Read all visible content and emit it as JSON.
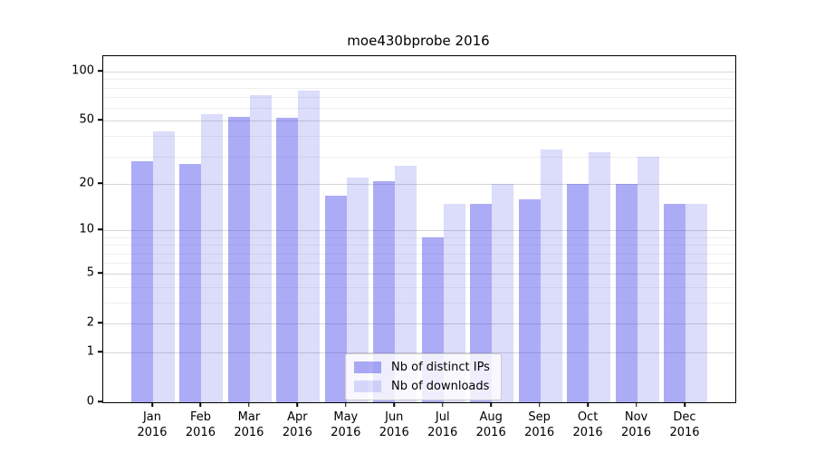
{
  "chart_data": {
    "type": "bar",
    "title": "moe430bprobe 2016",
    "year_label": "2016",
    "months": [
      "Jan",
      "Feb",
      "Mar",
      "Apr",
      "May",
      "Jun",
      "Jul",
      "Aug",
      "Sep",
      "Oct",
      "Nov",
      "Dec"
    ],
    "series": [
      {
        "name": "Nb of distinct IPs",
        "color": "rgba(70,70,235,0.45)",
        "values": [
          28,
          27,
          53,
          52,
          17,
          21,
          9,
          15,
          16,
          20,
          20,
          15
        ]
      },
      {
        "name": "Nb of downloads",
        "color": "rgba(70,70,235,0.19)",
        "values": [
          43,
          55,
          72,
          77,
          22,
          26,
          15,
          20,
          33,
          32,
          30,
          15
        ]
      }
    ],
    "y_ticks": [
      100,
      50,
      20,
      10,
      5,
      2,
      1,
      0
    ],
    "y_minor_ticks": [
      90,
      80,
      70,
      60,
      40,
      30,
      9,
      8,
      7,
      6,
      4,
      3
    ],
    "ylim": [
      0,
      124.5
    ],
    "scale": "log10(1+y)",
    "xlabel": "",
    "ylabel": "",
    "grid": {
      "enabled": true,
      "major_color": "#d6d6d6",
      "minor_color": "#efefef"
    },
    "axis_color": "#000000",
    "legend": {
      "position": "lower center",
      "background": "rgba(255,255,255,0.8)",
      "border_color": "#cccccc"
    }
  }
}
